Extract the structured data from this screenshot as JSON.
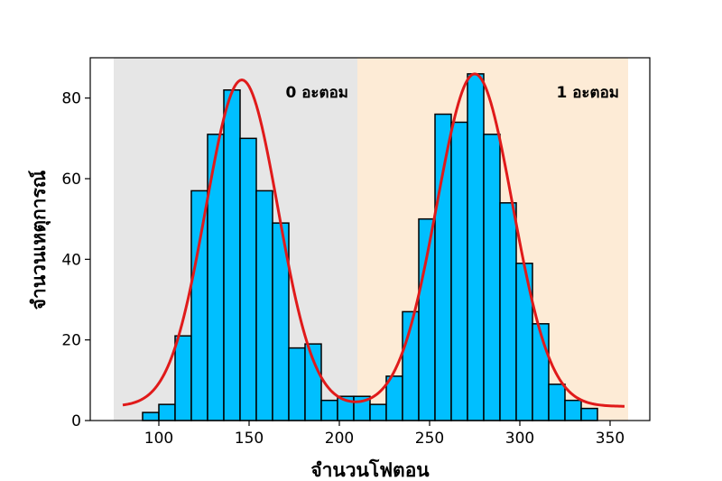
{
  "chart_data": {
    "type": "bar",
    "xlabel": "จำนวนโฟตอน",
    "ylabel": "จำนวนเหตุการณ์",
    "xlim": [
      62,
      372
    ],
    "ylim": [
      0,
      90
    ],
    "xticks": [
      100,
      150,
      200,
      250,
      300,
      350
    ],
    "yticks": [
      0,
      20,
      40,
      60,
      80
    ],
    "bin_width": 9,
    "bins": [
      {
        "x0": 91,
        "count": 2
      },
      {
        "x0": 100,
        "count": 4
      },
      {
        "x0": 109,
        "count": 21
      },
      {
        "x0": 118,
        "count": 57
      },
      {
        "x0": 127,
        "count": 71
      },
      {
        "x0": 136,
        "count": 82
      },
      {
        "x0": 145,
        "count": 70
      },
      {
        "x0": 154,
        "count": 57
      },
      {
        "x0": 163,
        "count": 49
      },
      {
        "x0": 172,
        "count": 18
      },
      {
        "x0": 181,
        "count": 19
      },
      {
        "x0": 190,
        "count": 5
      },
      {
        "x0": 199,
        "count": 6
      },
      {
        "x0": 208,
        "count": 6
      },
      {
        "x0": 217,
        "count": 4
      },
      {
        "x0": 226,
        "count": 11
      },
      {
        "x0": 235,
        "count": 27
      },
      {
        "x0": 244,
        "count": 50
      },
      {
        "x0": 253,
        "count": 76
      },
      {
        "x0": 262,
        "count": 74
      },
      {
        "x0": 271,
        "count": 86
      },
      {
        "x0": 280,
        "count": 71
      },
      {
        "x0": 289,
        "count": 54
      },
      {
        "x0": 298,
        "count": 39
      },
      {
        "x0": 307,
        "count": 24
      },
      {
        "x0": 316,
        "count": 9
      },
      {
        "x0": 325,
        "count": 5
      },
      {
        "x0": 334,
        "count": 3
      }
    ],
    "fit_curve": {
      "type": "double-gaussian",
      "x_range": [
        80,
        358
      ],
      "baseline": 3.5,
      "peaks": [
        {
          "mean": 146,
          "sigma": 20,
          "amplitude": 81
        },
        {
          "mean": 275,
          "sigma": 21,
          "amplitude": 82.5
        }
      ]
    },
    "regions": [
      {
        "x_start": 75,
        "x_end": 210,
        "label": "0 อะตอม",
        "color": "#e6e6e6"
      },
      {
        "x_start": 210,
        "x_end": 360,
        "label": "1 อะตอม",
        "color": "#fdebd6"
      }
    ],
    "colors": {
      "bar_fill": "#00bfff",
      "bar_edge": "#000000",
      "fit_line": "#e01a1a"
    },
    "grid": false,
    "legend": "none"
  }
}
